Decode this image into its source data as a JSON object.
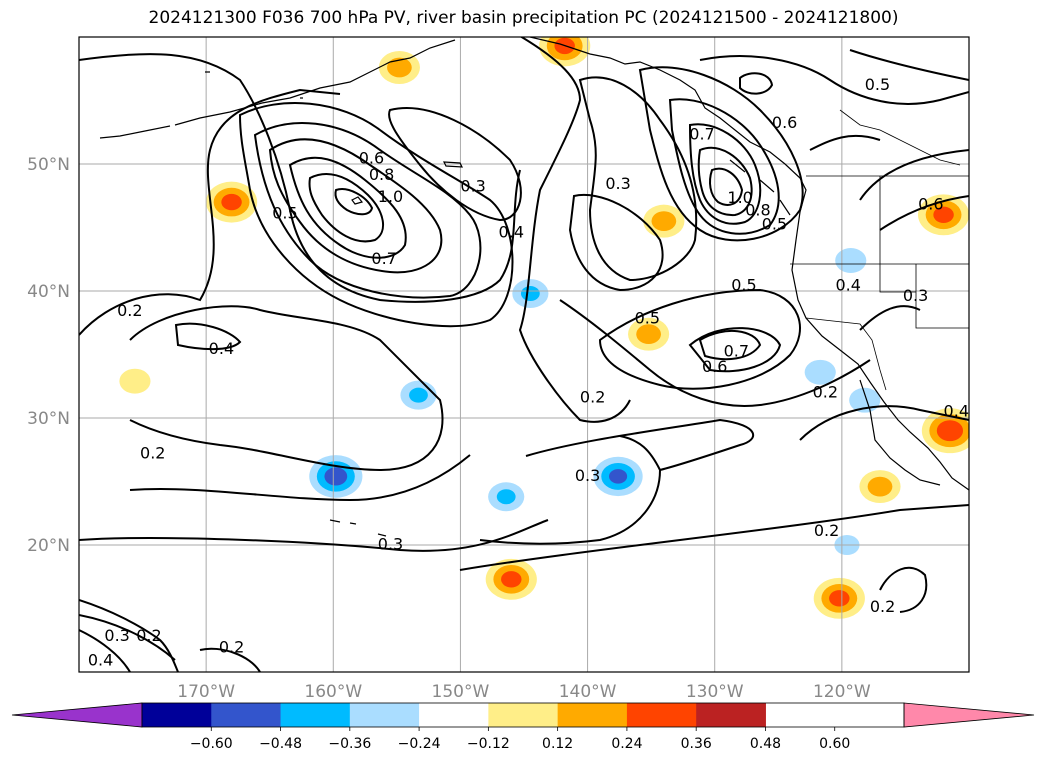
{
  "figure": {
    "title": "2024121300 F036 700 hPa PV, river basin precipitation PC (2024121500 - 2024121800)"
  },
  "map": {
    "lon_range": [
      -180,
      -110
    ],
    "lat_range": [
      10,
      60
    ],
    "grid": true,
    "lon_ticks": [
      {
        "value": -170,
        "label": "170°W"
      },
      {
        "value": -160,
        "label": "160°W"
      },
      {
        "value": -150,
        "label": "150°W"
      },
      {
        "value": -140,
        "label": "140°W"
      },
      {
        "value": -130,
        "label": "130°W"
      },
      {
        "value": -120,
        "label": "120°W"
      }
    ],
    "lat_ticks": [
      {
        "value": 50,
        "label": "50°N"
      },
      {
        "value": 40,
        "label": "40°N"
      },
      {
        "value": 30,
        "label": "30°N"
      },
      {
        "value": 20,
        "label": "20°N"
      }
    ]
  },
  "colorbar": {
    "orientation": "horizontal",
    "extend": "both",
    "colors": [
      "#9933cc",
      "#000099",
      "#3355cc",
      "#00bbff",
      "#aaddff",
      "#ffffff",
      "#ffee88",
      "#ffaa00",
      "#ff4400",
      "#bb2222",
      "#ff88aa"
    ],
    "ticks": [
      "−0.60",
      "−0.48",
      "−0.36",
      "−0.24",
      "−0.12",
      "0.12",
      "0.24",
      "0.36",
      "0.48",
      "0.60"
    ]
  },
  "contour_labels": [
    {
      "text": "0.2",
      "lon": -176,
      "lat": 38.5
    },
    {
      "text": "0.4",
      "lon": -168.8,
      "lat": 35.5
    },
    {
      "text": "0.2",
      "lon": -174.2,
      "lat": 27.3
    },
    {
      "text": "0.5",
      "lon": -163.8,
      "lat": 46.2
    },
    {
      "text": "0.6",
      "lon": -157,
      "lat": 50.5
    },
    {
      "text": "0.8",
      "lon": -156.2,
      "lat": 49.2
    },
    {
      "text": "1.0",
      "lon": -155.5,
      "lat": 47.5
    },
    {
      "text": "0.7",
      "lon": -156,
      "lat": 42.6
    },
    {
      "text": "0.3",
      "lon": -149,
      "lat": 48.3
    },
    {
      "text": "0.4",
      "lon": -146,
      "lat": 44.7
    },
    {
      "text": "0.3",
      "lon": -137.6,
      "lat": 48.5
    },
    {
      "text": "1.0",
      "lon": -128,
      "lat": 47.4
    },
    {
      "text": "0.8",
      "lon": -126.6,
      "lat": 46.4
    },
    {
      "text": "0.7",
      "lon": -131,
      "lat": 52.4
    },
    {
      "text": "0.6",
      "lon": -124.5,
      "lat": 53.3
    },
    {
      "text": "0.5",
      "lon": -117.2,
      "lat": 56.3
    },
    {
      "text": "0.5",
      "lon": -125.3,
      "lat": 45.3
    },
    {
      "text": "0.6",
      "lon": -113,
      "lat": 46.9
    },
    {
      "text": "0.5",
      "lon": -135.3,
      "lat": 37.9
    },
    {
      "text": "0.5",
      "lon": -127.7,
      "lat": 40.5
    },
    {
      "text": "0.7",
      "lon": -128.3,
      "lat": 35.3
    },
    {
      "text": "0.6",
      "lon": -130,
      "lat": 34.1
    },
    {
      "text": "0.4",
      "lon": -119.5,
      "lat": 40.5
    },
    {
      "text": "0.3",
      "lon": -114.2,
      "lat": 39.7
    },
    {
      "text": "0.2",
      "lon": -139.6,
      "lat": 31.7
    },
    {
      "text": "0.2",
      "lon": -121.3,
      "lat": 32.1
    },
    {
      "text": "0.4",
      "lon": -111,
      "lat": 30.6
    },
    {
      "text": "0.3",
      "lon": -140,
      "lat": 25.5
    },
    {
      "text": "0.3",
      "lon": -155.5,
      "lat": 20.1
    },
    {
      "text": "0.2",
      "lon": -121.2,
      "lat": 21.2
    },
    {
      "text": "0.2",
      "lon": -116.8,
      "lat": 15.2
    },
    {
      "text": "0.3",
      "lon": -177,
      "lat": 12.9
    },
    {
      "text": "0.2",
      "lon": -174.5,
      "lat": 12.9
    },
    {
      "text": "0.4",
      "lon": -178.3,
      "lat": 11.0
    },
    {
      "text": "0.2",
      "lon": -168,
      "lat": 12.0
    }
  ],
  "precip_blobs": [
    {
      "sign": "positive",
      "lon": -168,
      "lat": 47.0,
      "intensity": 0.4
    },
    {
      "sign": "positive",
      "lon": -154.8,
      "lat": 57.6,
      "intensity": 0.3
    },
    {
      "sign": "positive",
      "lon": -141.8,
      "lat": 59.3,
      "intensity": 0.4
    },
    {
      "sign": "positive",
      "lon": -134,
      "lat": 45.5,
      "intensity": 0.3
    },
    {
      "sign": "positive",
      "lon": -135.2,
      "lat": 36.6,
      "intensity": 0.3
    },
    {
      "sign": "positive",
      "lon": -146.0,
      "lat": 17.3,
      "intensity": 0.4
    },
    {
      "sign": "positive",
      "lon": -120.2,
      "lat": 15.8,
      "intensity": 0.4
    },
    {
      "sign": "positive",
      "lon": -112,
      "lat": 46.0,
      "intensity": 0.4
    },
    {
      "sign": "positive",
      "lon": -111.5,
      "lat": 29.0,
      "intensity": 0.45
    },
    {
      "sign": "positive",
      "lon": -117,
      "lat": 24.6,
      "intensity": 0.3
    },
    {
      "sign": "positive",
      "lon": -175.6,
      "lat": 32.9,
      "intensity": 0.2
    },
    {
      "sign": "negative",
      "lon": -159.8,
      "lat": 25.4,
      "intensity": 0.42
    },
    {
      "sign": "negative",
      "lon": -137.6,
      "lat": 25.4,
      "intensity": 0.38
    },
    {
      "sign": "negative",
      "lon": -144.5,
      "lat": 39.8,
      "intensity": 0.25
    },
    {
      "sign": "negative",
      "lon": -153.3,
      "lat": 31.8,
      "intensity": 0.25
    },
    {
      "sign": "negative",
      "lon": -146.4,
      "lat": 23.8,
      "intensity": 0.25
    },
    {
      "sign": "negative",
      "lon": -119.3,
      "lat": 42.4,
      "intensity": 0.2
    },
    {
      "sign": "negative",
      "lon": -121.7,
      "lat": 33.6,
      "intensity": 0.2
    },
    {
      "sign": "negative",
      "lon": -118.2,
      "lat": 31.4,
      "intensity": 0.2
    },
    {
      "sign": "negative",
      "lon": -119.6,
      "lat": 20.0,
      "intensity": 0.14
    }
  ]
}
